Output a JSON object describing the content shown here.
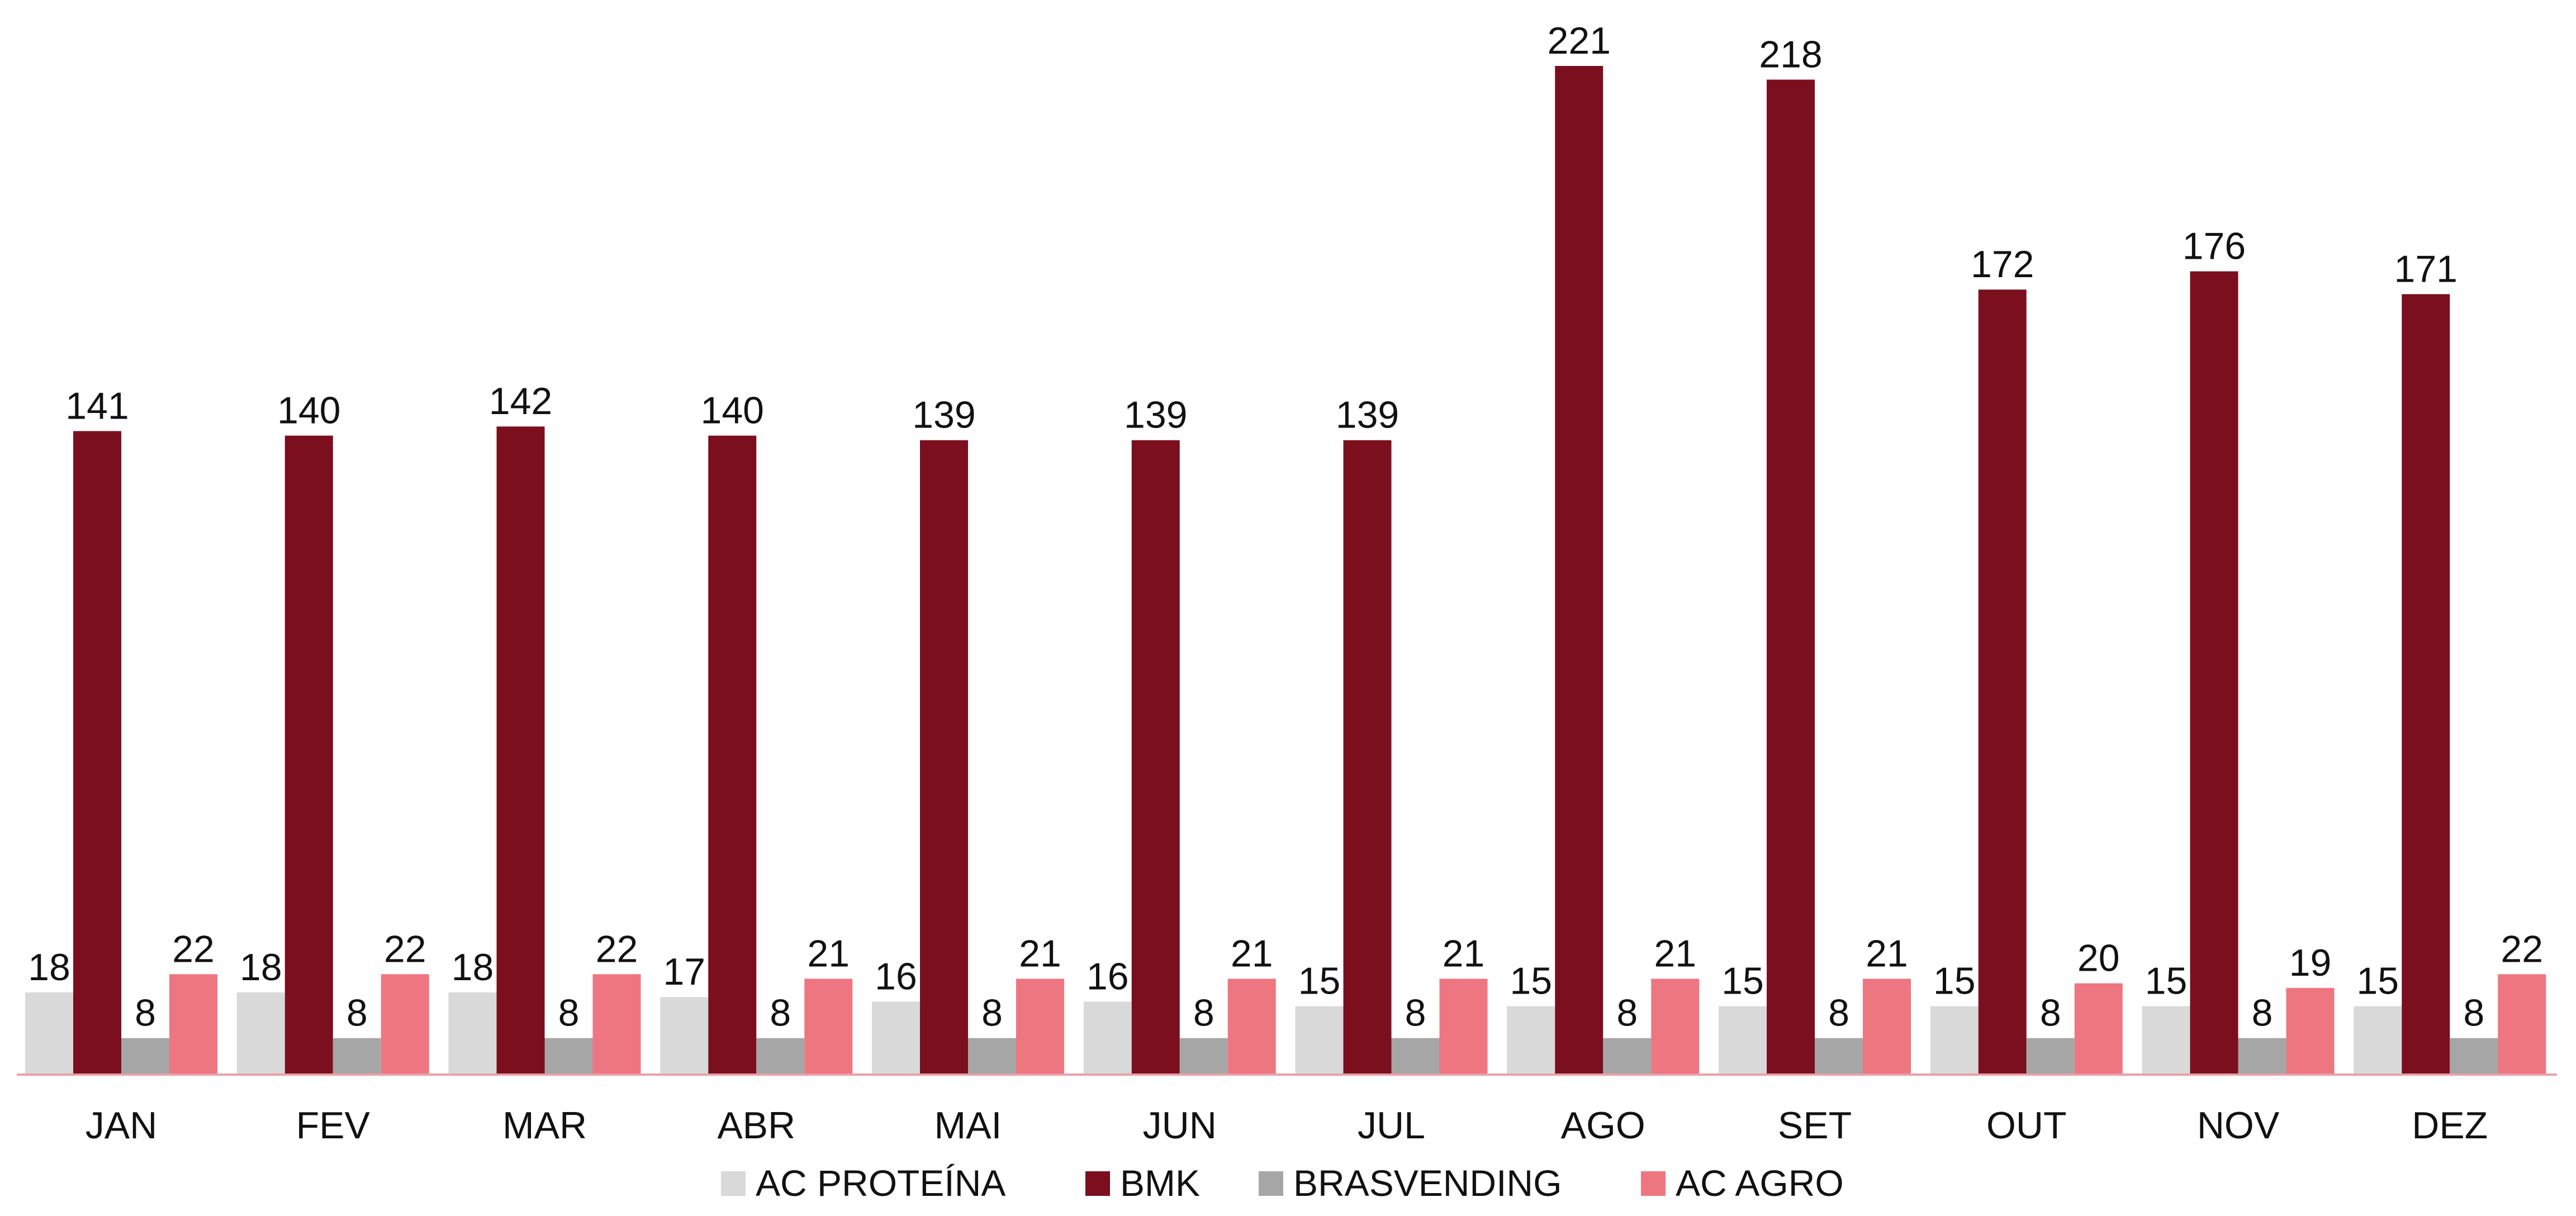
{
  "chart_data": {
    "type": "bar",
    "categories": [
      "JAN",
      "FEV",
      "MAR",
      "ABR",
      "MAI",
      "JUN",
      "JUL",
      "AGO",
      "SET",
      "OUT",
      "NOV",
      "DEZ"
    ],
    "series": [
      {
        "name": "AC PROTEÍNA",
        "color": "#d9d9d9",
        "values": [
          18,
          18,
          18,
          17,
          16,
          16,
          15,
          15,
          15,
          15,
          15,
          15
        ]
      },
      {
        "name": "BMK",
        "color": "#7b0f1e",
        "values": [
          141,
          140,
          142,
          140,
          139,
          139,
          139,
          221,
          218,
          172,
          176,
          171
        ]
      },
      {
        "name": "BRASVENDING",
        "color": "#a6a6a6",
        "values": [
          8,
          8,
          8,
          8,
          8,
          8,
          8,
          8,
          8,
          8,
          8,
          8
        ]
      },
      {
        "name": "AC AGRO",
        "color": "#ee7680",
        "values": [
          22,
          22,
          22,
          21,
          21,
          21,
          21,
          21,
          21,
          20,
          19,
          22
        ]
      }
    ],
    "ylim": [
      0,
      230
    ],
    "grid": false,
    "y_axis_visible": false,
    "data_labels": true,
    "legend_position": "bottom",
    "baseline_color": "#e8a1a8",
    "label_color": "#111111"
  }
}
